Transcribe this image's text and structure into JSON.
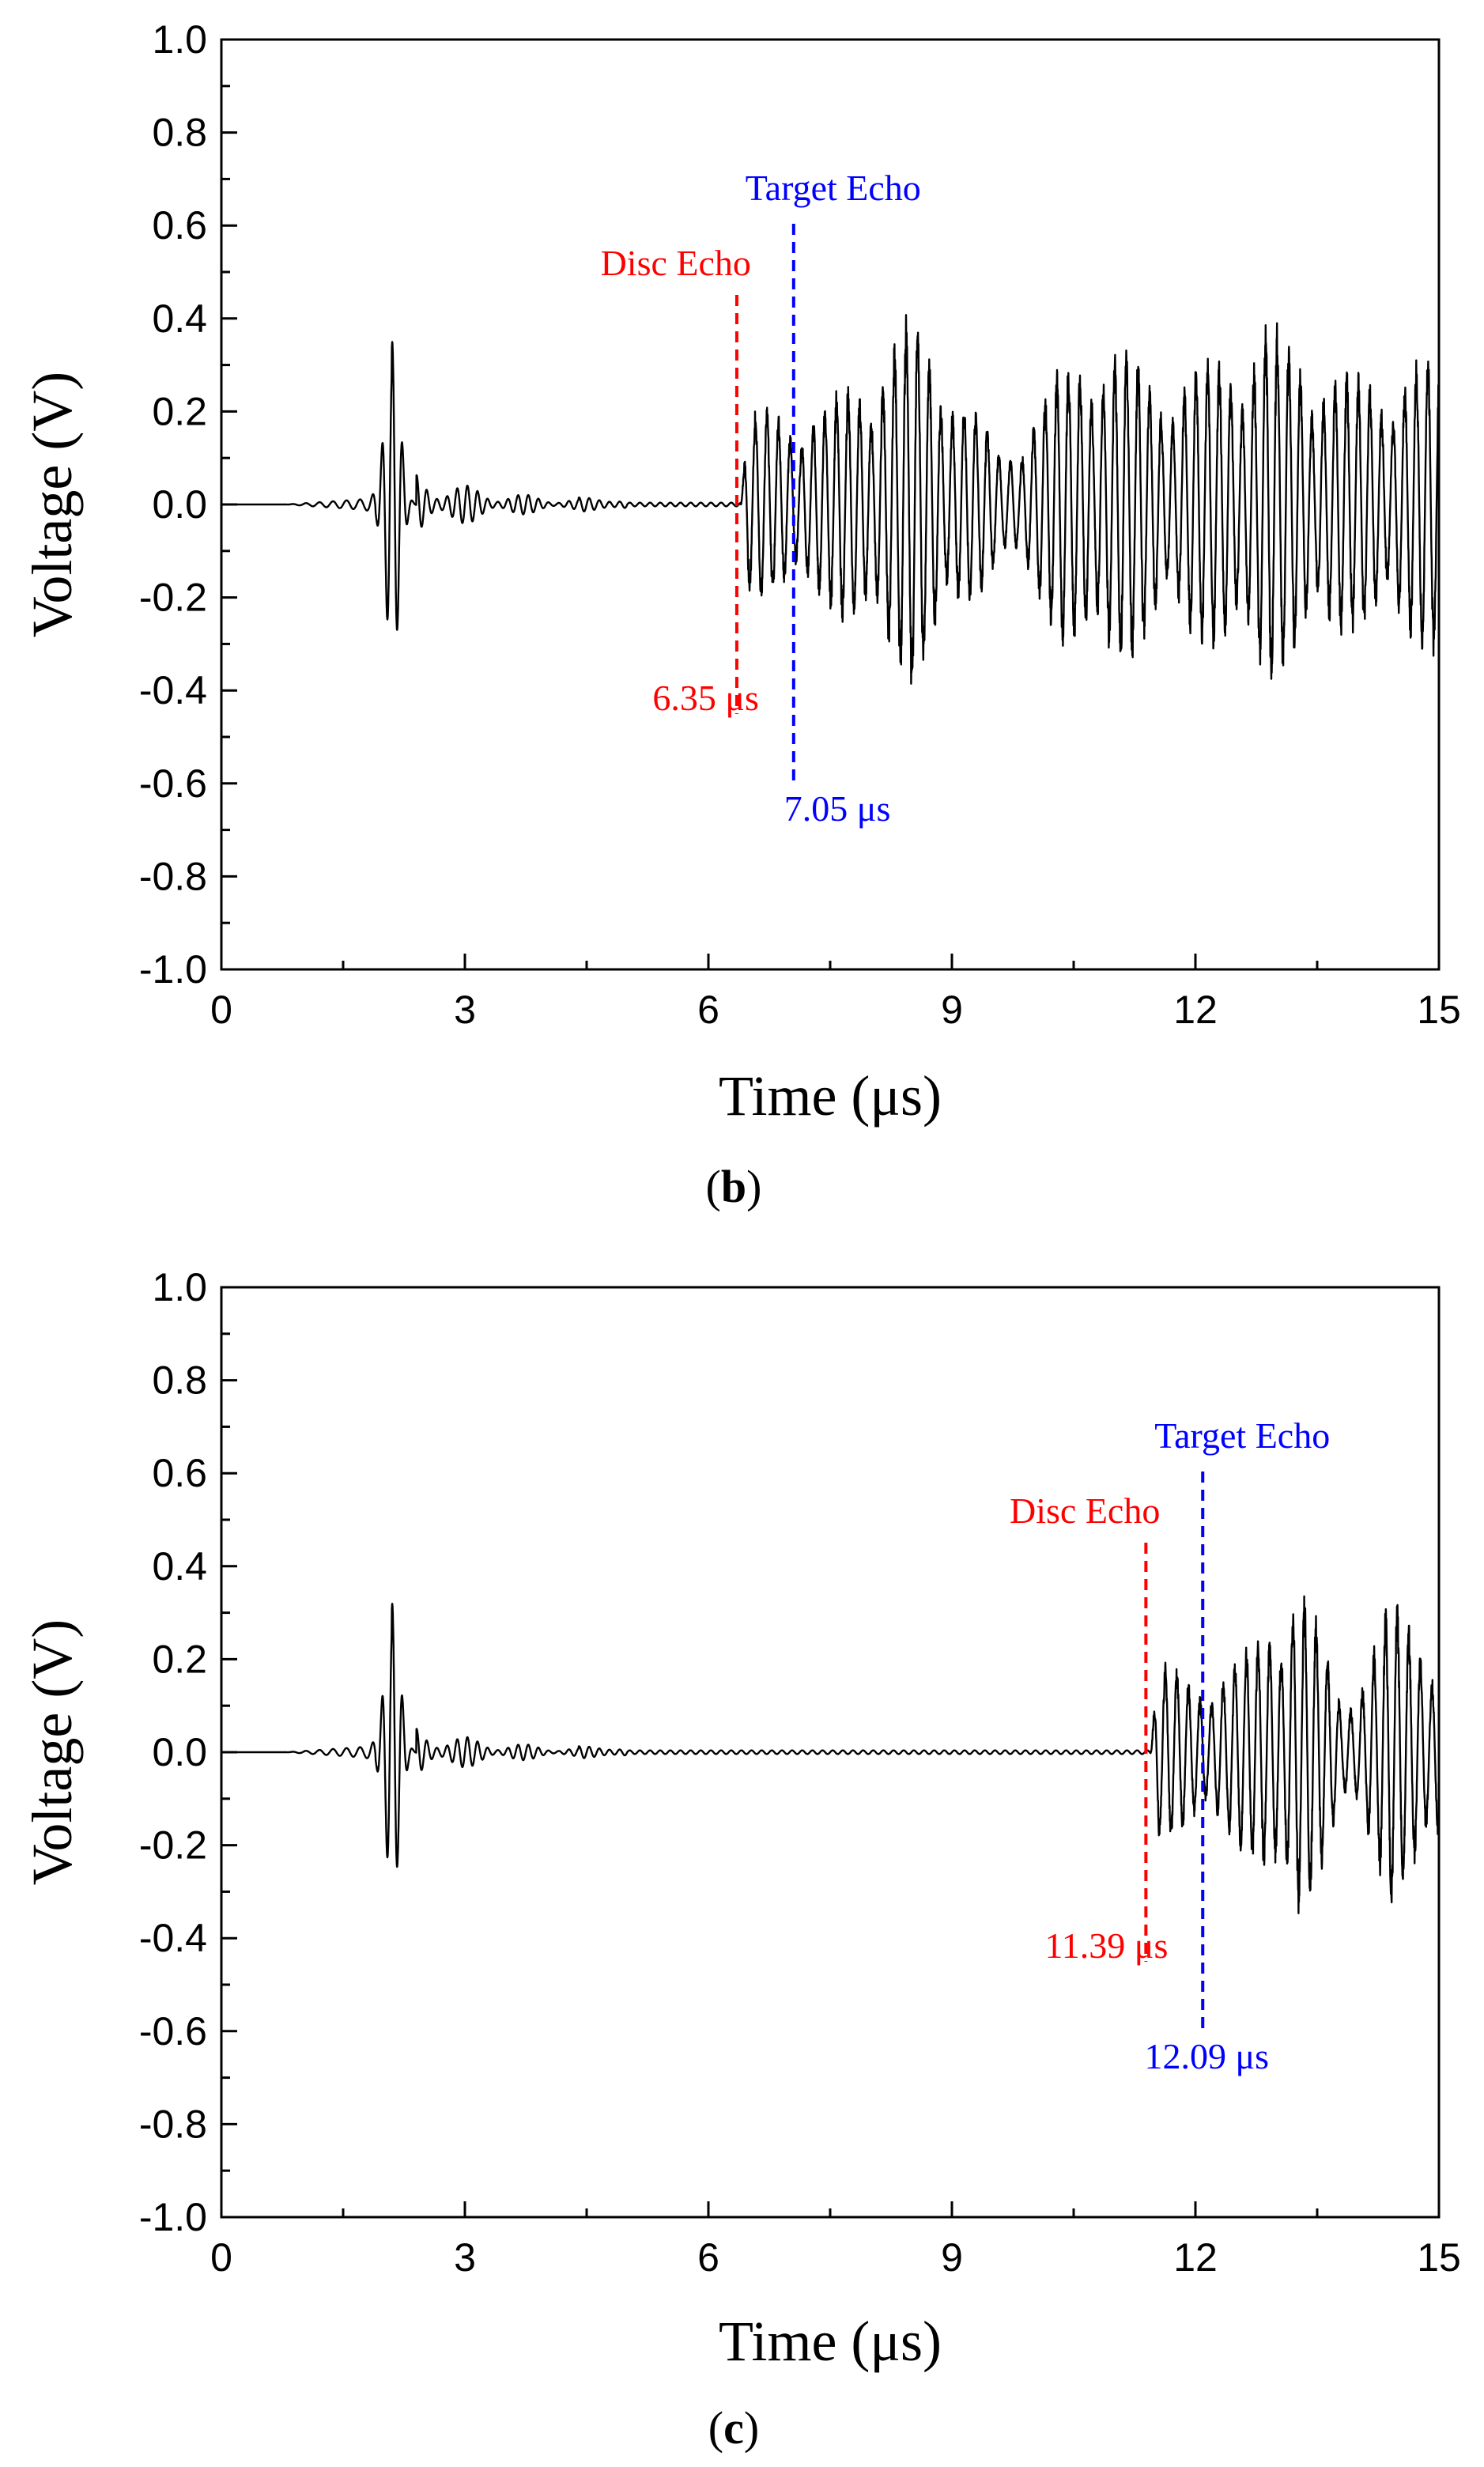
{
  "chart_data": [
    {
      "type": "line",
      "panel_label": "b",
      "xlabel": "Time (μs)",
      "ylabel": "Voltage (V)",
      "xlim": [
        0,
        15
      ],
      "ylim": [
        -1.0,
        1.0
      ],
      "xticks": [
        0,
        3,
        6,
        9,
        12,
        15
      ],
      "xtick_labels": [
        "0",
        "3",
        "6",
        "9",
        "12",
        "15"
      ],
      "yticks": [
        -1.0,
        -0.8,
        -0.6,
        -0.4,
        -0.2,
        0.0,
        0.2,
        0.4,
        0.6,
        0.8,
        1.0
      ],
      "ytick_labels": [
        "-1.0",
        "-0.8",
        "-0.6",
        "-0.4",
        "-0.2",
        "0.0",
        "0.2",
        "0.4",
        "0.6",
        "0.8",
        "1.0"
      ],
      "colors": {
        "disc": "#ff0000",
        "target": "#0000ff",
        "signal": "#000000"
      },
      "series": [
        {
          "name": "signal",
          "t_range": [
            0,
            15
          ],
          "initial_pulse": {
            "center_us": 2.1,
            "peak_max_v": 0.35,
            "peak_min_v": -0.28,
            "freq_mhz": 8
          },
          "ringdown": {
            "start_us": 2.6,
            "end_us": 4.4,
            "amplitude_v": 0.05
          },
          "echo_train": {
            "start_us": 6.4,
            "end_us": 15,
            "amplitude_v": [
              0.18,
              0.2,
              0.38,
              0.1,
              0.35,
              0.25,
              0.36,
              0.25,
              0.3
            ],
            "freq_mhz": 7
          }
        }
      ],
      "annotations": {
        "disc": {
          "x": 6.35,
          "title": "Disc Echo",
          "time_label": "6.35 μs"
        },
        "target": {
          "x": 7.05,
          "title": "Target Echo",
          "time_label": "7.05 μs"
        }
      }
    },
    {
      "type": "line",
      "panel_label": "c",
      "xlabel": "Time (μs)",
      "ylabel": "Voltage (V)",
      "xlim": [
        0,
        15
      ],
      "ylim": [
        -1.0,
        1.0
      ],
      "xticks": [
        0,
        3,
        6,
        9,
        12,
        15
      ],
      "xtick_labels": [
        "0",
        "3",
        "6",
        "9",
        "12",
        "15"
      ],
      "yticks": [
        -1.0,
        -0.8,
        -0.6,
        -0.4,
        -0.2,
        0.0,
        0.2,
        0.4,
        0.6,
        0.8,
        1.0
      ],
      "ytick_labels": [
        "-1.0",
        "-0.8",
        "-0.6",
        "-0.4",
        "-0.2",
        "0.0",
        "0.2",
        "0.4",
        "0.6",
        "0.8",
        "1.0"
      ],
      "colors": {
        "disc": "#ff0000",
        "target": "#0000ff",
        "signal": "#000000"
      },
      "series": [
        {
          "name": "signal",
          "t_range": [
            0,
            15
          ],
          "initial_pulse": {
            "center_us": 2.1,
            "peak_max_v": 0.32,
            "peak_min_v": -0.28,
            "freq_mhz": 8
          },
          "ringdown": {
            "start_us": 2.6,
            "end_us": 4.4,
            "amplitude_v": 0.04
          },
          "echo_train": {
            "start_us": 11.45,
            "end_us": 15,
            "amplitude_v": [
              0.18,
              0.15,
              0.2,
              0.38,
              0.1,
              0.3,
              0.22
            ],
            "freq_mhz": 7
          }
        }
      ],
      "annotations": {
        "disc": {
          "x": 11.39,
          "title": "Disc Echo",
          "time_label": "11.39 μs"
        },
        "target": {
          "x": 12.09,
          "title": "Target Echo",
          "time_label": "12.09 μs"
        }
      }
    }
  ]
}
